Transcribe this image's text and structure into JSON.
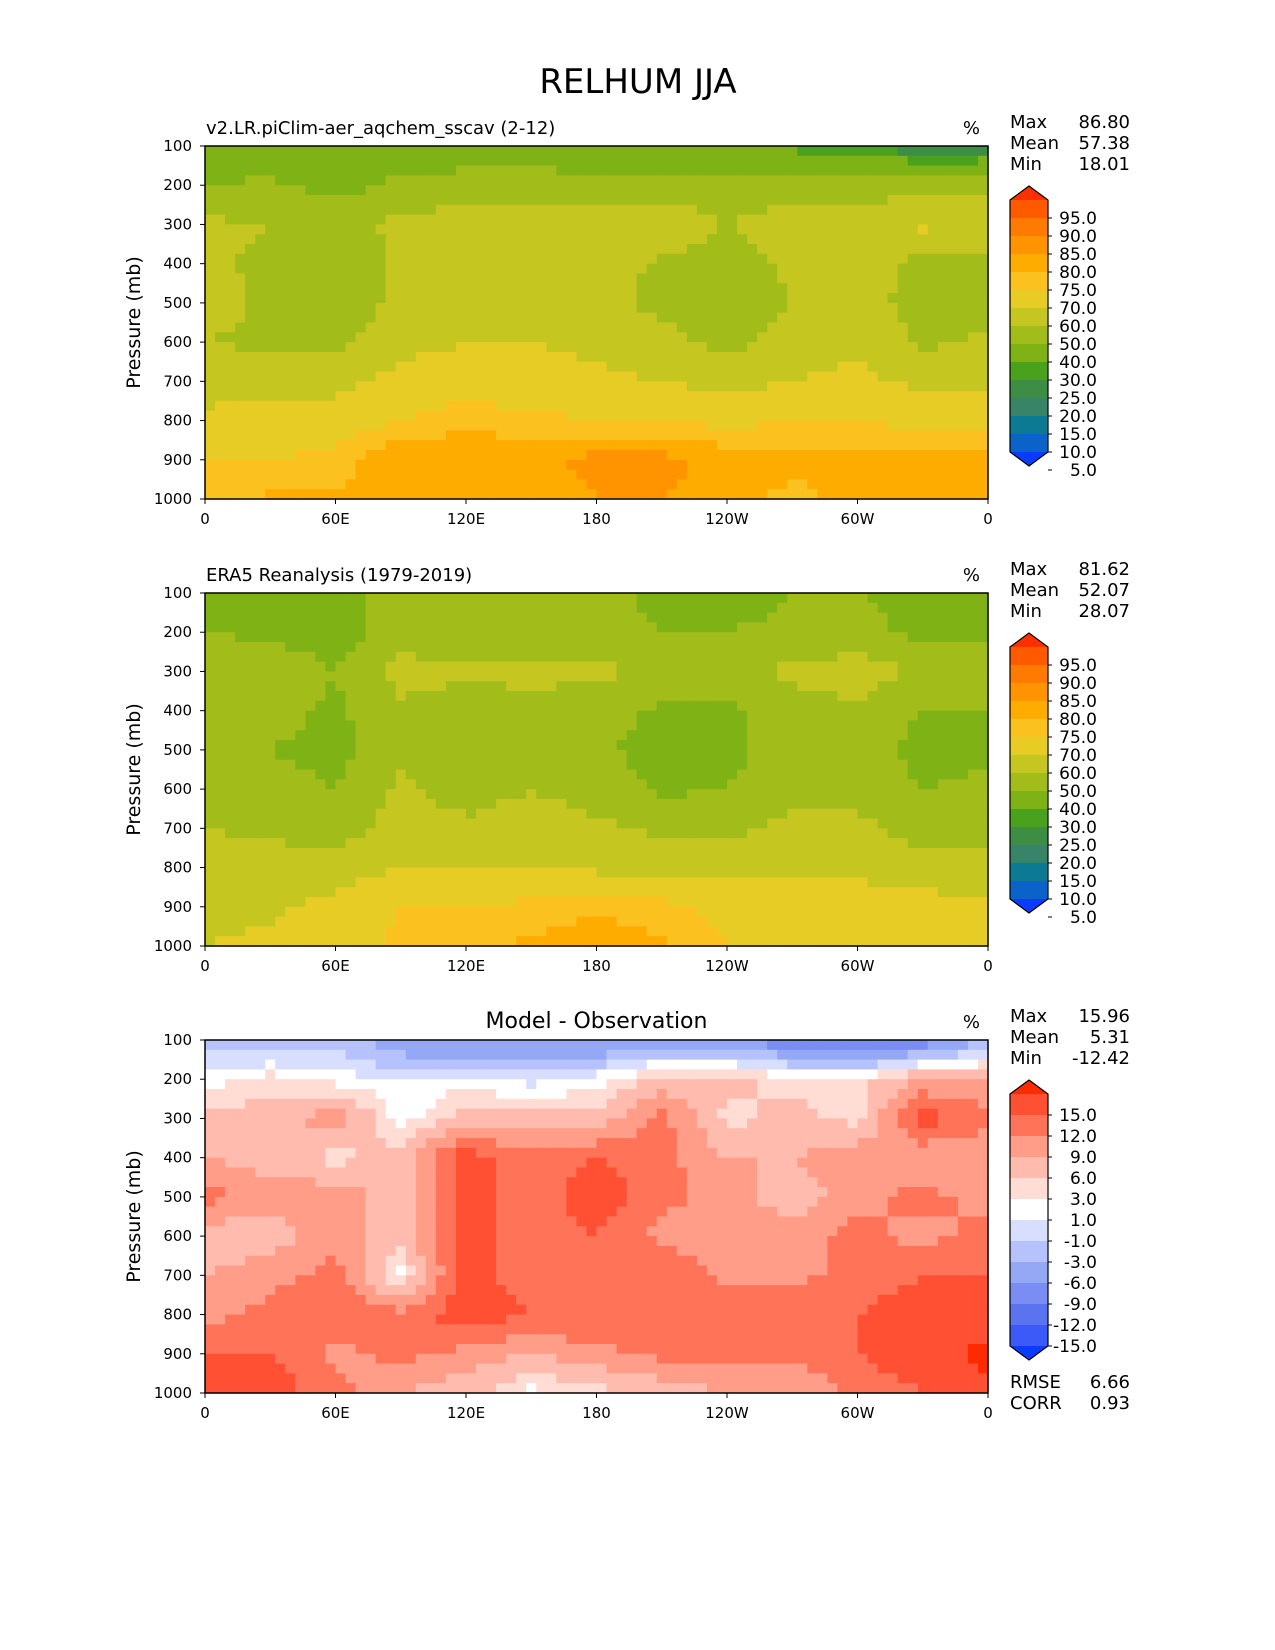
{
  "figure_title": "RELHUM JJA",
  "x_ticks": [
    "0",
    "60E",
    "120E",
    "180",
    "120W",
    "60W",
    "0"
  ],
  "y_ticks": [
    "100",
    "200",
    "300",
    "400",
    "500",
    "600",
    "700",
    "800",
    "900",
    "1000"
  ],
  "ylabel": "Pressure (mb)",
  "units": "%",
  "stat_labels": {
    "max": "Max",
    "mean": "Mean",
    "min": "Min",
    "rmse": "RMSE",
    "corr": "CORR"
  },
  "panels": [
    {
      "title": "v2.LR.piClim-aer_aqchem_sscav (2-12)",
      "stats": {
        "max": "86.80",
        "mean": "57.38",
        "min": "18.01"
      },
      "colorbar": [
        "95.0",
        "90.0",
        "85.0",
        "80.0",
        "75.0",
        "70.0",
        "60.0",
        "50.0",
        "40.0",
        "30.0",
        "25.0",
        "20.0",
        "15.0",
        "10.0",
        "5.0"
      ]
    },
    {
      "title": "ERA5 Reanalysis (1979-2019)",
      "stats": {
        "max": "81.62",
        "mean": "52.07",
        "min": "28.07"
      },
      "colorbar": [
        "95.0",
        "90.0",
        "85.0",
        "80.0",
        "75.0",
        "70.0",
        "60.0",
        "50.0",
        "40.0",
        "30.0",
        "25.0",
        "20.0",
        "15.0",
        "10.0",
        "5.0"
      ]
    },
    {
      "title": "Model - Observation",
      "stats": {
        "max": "15.96",
        "mean": "5.31",
        "min": "-12.42",
        "rmse": "6.66",
        "corr": "0.93"
      },
      "colorbar": [
        "15.0",
        "12.0",
        "9.0",
        "6.0",
        "3.0",
        "1.0",
        "-1.0",
        "-3.0",
        "-6.0",
        "-9.0",
        "-12.0",
        "-15.0"
      ]
    }
  ],
  "colors": {
    "abs_levels": [
      "#ff2f00",
      "#ff5a00",
      "#ff7a00",
      "#ff9300",
      "#ffac00",
      "#fbc11f",
      "#e8cc26",
      "#c6c621",
      "#a2bc1a",
      "#7fb215",
      "#4aa21c",
      "#3d8e44",
      "#388469",
      "#0d7a94",
      "#0b62c8",
      "#0a3cff"
    ],
    "diff_levels": [
      "#ff2a00",
      "#ff5033",
      "#ff7359",
      "#ff9d88",
      "#ffbcae",
      "#ffdcd4",
      "#ffffff",
      "#d8deff",
      "#b5c2fb",
      "#95a8f6",
      "#7a8df2",
      "#5b73ee",
      "#3b5af7",
      "#0a3cff"
    ]
  },
  "chart_data": [
    {
      "type": "heatmap",
      "title": "v2.LR.piClim-aer_aqchem_sscav (2-12)",
      "xlabel": "",
      "ylabel": "Pressure (mb)",
      "x": [
        0,
        30,
        60,
        90,
        120,
        150,
        180,
        210,
        240,
        270,
        300,
        330,
        360
      ],
      "y": [
        100,
        200,
        300,
        400,
        500,
        600,
        700,
        800,
        900,
        1000
      ],
      "ylim": [
        1000,
        100
      ],
      "values": [
        [
          32,
          30,
          32,
          34,
          34,
          34,
          32,
          30,
          28,
          28,
          26,
          20,
          22
        ],
        [
          40,
          42,
          36,
          42,
          44,
          44,
          44,
          44,
          44,
          44,
          44,
          44,
          44
        ],
        [
          52,
          50,
          48,
          52,
          56,
          56,
          56,
          58,
          50,
          56,
          58,
          62,
          60
        ],
        [
          52,
          48,
          40,
          52,
          58,
          58,
          56,
          48,
          44,
          52,
          56,
          46,
          46
        ],
        [
          54,
          48,
          44,
          52,
          58,
          58,
          56,
          46,
          44,
          50,
          54,
          46,
          46
        ],
        [
          50,
          48,
          48,
          56,
          60,
          60,
          58,
          54,
          46,
          56,
          58,
          48,
          52
        ],
        [
          56,
          56,
          56,
          64,
          66,
          64,
          62,
          60,
          56,
          60,
          62,
          58,
          58
        ],
        [
          62,
          64,
          66,
          70,
          74,
          72,
          70,
          70,
          68,
          70,
          70,
          68,
          66
        ],
        [
          70,
          70,
          72,
          80,
          78,
          78,
          82,
          82,
          78,
          76,
          76,
          78,
          78
        ],
        [
          74,
          76,
          76,
          78,
          78,
          76,
          80,
          80,
          76,
          74,
          76,
          78,
          78
        ]
      ],
      "units": "%",
      "colorbar_levels": [
        5,
        10,
        15,
        20,
        25,
        30,
        40,
        50,
        60,
        70,
        75,
        80,
        85,
        90,
        95
      ],
      "stats": {
        "max": 86.8,
        "mean": 57.38,
        "min": 18.01
      }
    },
    {
      "type": "heatmap",
      "title": "ERA5 Reanalysis (1979-2019)",
      "xlabel": "",
      "ylabel": "Pressure (mb)",
      "x": [
        0,
        30,
        60,
        90,
        120,
        150,
        180,
        210,
        240,
        270,
        300,
        330,
        360
      ],
      "y": [
        100,
        200,
        300,
        400,
        500,
        600,
        700,
        800,
        900,
        1000
      ],
      "ylim": [
        1000,
        100
      ],
      "values": [
        [
          36,
          36,
          36,
          44,
          44,
          44,
          42,
          38,
          36,
          40,
          40,
          38,
          36
        ],
        [
          40,
          38,
          36,
          44,
          44,
          46,
          44,
          40,
          40,
          42,
          42,
          38,
          38
        ],
        [
          48,
          46,
          40,
          54,
          52,
          52,
          52,
          48,
          48,
          52,
          56,
          48,
          50
        ],
        [
          46,
          44,
          38,
          48,
          44,
          48,
          44,
          38,
          38,
          46,
          48,
          40,
          40
        ],
        [
          44,
          40,
          36,
          48,
          44,
          48,
          42,
          36,
          36,
          46,
          46,
          36,
          38
        ],
        [
          46,
          44,
          40,
          52,
          46,
          50,
          46,
          38,
          40,
          48,
          48,
          40,
          42
        ],
        [
          50,
          48,
          46,
          54,
          52,
          54,
          52,
          48,
          48,
          52,
          52,
          46,
          46
        ],
        [
          54,
          54,
          54,
          60,
          60,
          60,
          58,
          56,
          56,
          58,
          58,
          54,
          54
        ],
        [
          58,
          58,
          64,
          70,
          70,
          72,
          74,
          72,
          68,
          66,
          64,
          64,
          62
        ],
        [
          60,
          62,
          66,
          72,
          74,
          76,
          78,
          76,
          70,
          68,
          66,
          66,
          64
        ]
      ],
      "units": "%",
      "colorbar_levels": [
        5,
        10,
        15,
        20,
        25,
        30,
        40,
        50,
        60,
        70,
        75,
        80,
        85,
        90,
        95
      ],
      "stats": {
        "max": 81.62,
        "mean": 52.07,
        "min": 28.07
      }
    },
    {
      "type": "heatmap",
      "title": "Model - Observation",
      "xlabel": "",
      "ylabel": "Pressure (mb)",
      "x": [
        0,
        30,
        60,
        90,
        120,
        150,
        180,
        210,
        240,
        270,
        300,
        330,
        360
      ],
      "y": [
        100,
        200,
        300,
        400,
        500,
        600,
        700,
        800,
        900,
        1000
      ],
      "ylim": [
        1000,
        100
      ],
      "values": [
        [
          -4,
          -6,
          -4,
          -9,
          -10,
          -10,
          -10,
          -8,
          -8,
          -12,
          -14,
          -12,
          -6
        ],
        [
          0,
          2,
          0,
          -1,
          0,
          -2,
          0,
          4,
          4,
          2,
          2,
          6,
          6
        ],
        [
          4,
          4,
          8,
          0,
          4,
          4,
          4,
          10,
          2,
          4,
          2,
          14,
          10
        ],
        [
          6,
          4,
          2,
          4,
          14,
          10,
          12,
          10,
          6,
          6,
          8,
          6,
          6
        ],
        [
          10,
          8,
          8,
          4,
          14,
          10,
          14,
          10,
          8,
          4,
          8,
          10,
          8
        ],
        [
          4,
          4,
          8,
          4,
          14,
          10,
          12,
          8,
          6,
          8,
          10,
          8,
          10
        ],
        [
          6,
          8,
          10,
          0,
          14,
          10,
          10,
          12,
          8,
          8,
          10,
          12,
          12
        ],
        [
          8,
          10,
          12,
          10,
          14,
          12,
          12,
          10,
          12,
          12,
          12,
          14,
          12
        ],
        [
          12,
          12,
          8,
          10,
          8,
          6,
          8,
          10,
          10,
          10,
          12,
          14,
          16
        ],
        [
          14,
          14,
          10,
          6,
          4,
          0,
          2,
          4,
          6,
          6,
          10,
          12,
          14
        ]
      ],
      "units": "%",
      "colorbar_levels": [
        -15,
        -12,
        -9,
        -6,
        -3,
        -1,
        1,
        3,
        6,
        9,
        12,
        15
      ],
      "stats": {
        "max": 15.96,
        "mean": 5.31,
        "min": -12.42,
        "rmse": 6.66,
        "corr": 0.93
      }
    }
  ]
}
